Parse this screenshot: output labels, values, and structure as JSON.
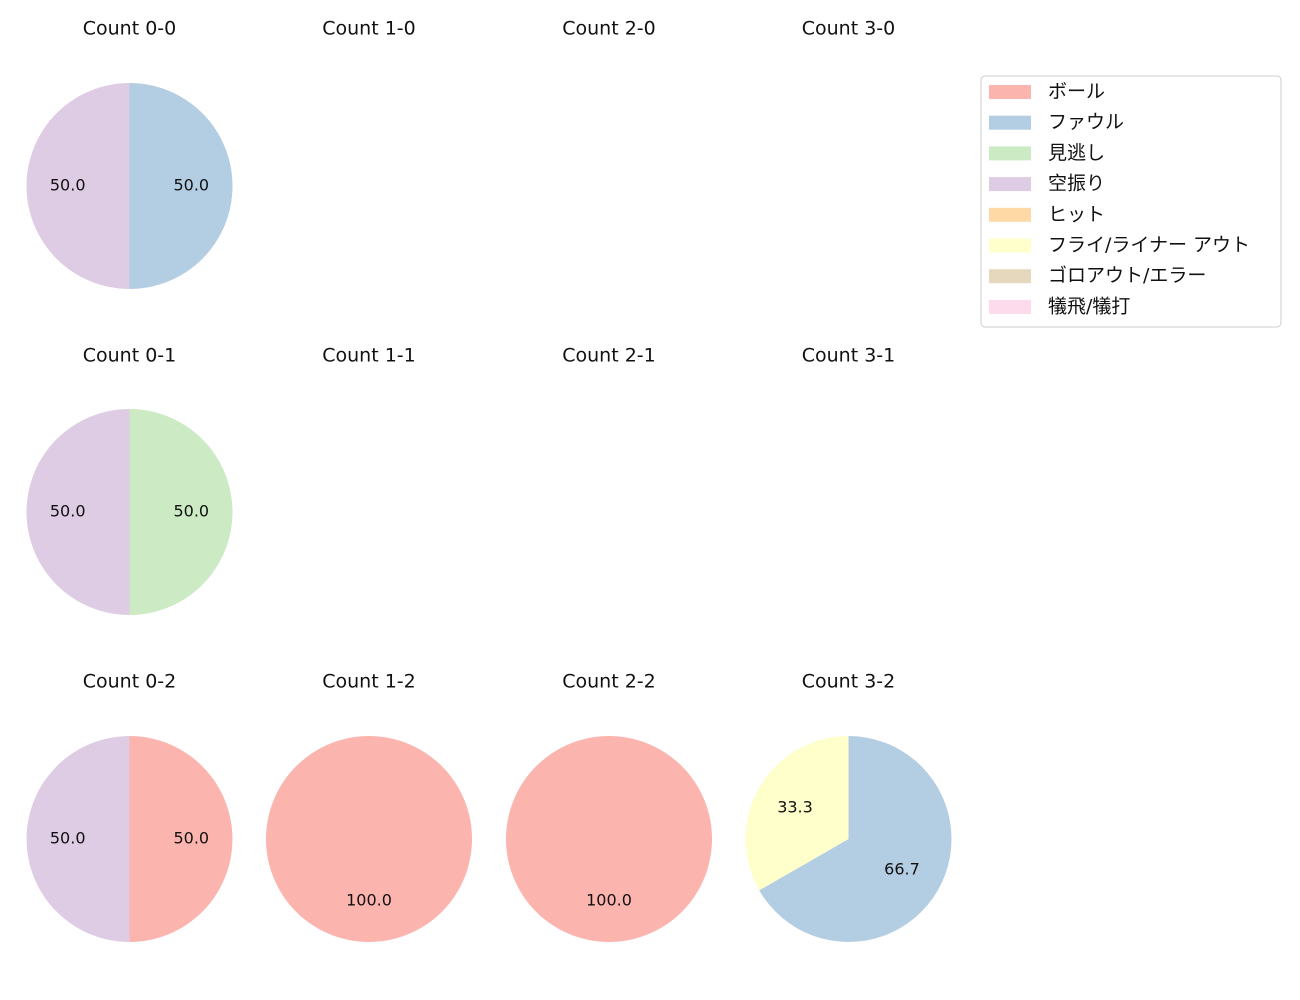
{
  "colors": {
    "ball": "#fbb4ae",
    "foul": "#b3cde3",
    "looking": "#ccebc5",
    "swinging": "#decbe4",
    "hit": "#fed9a6",
    "fly_liner_out": "#ffffcc",
    "grounder_error": "#e5d8bd",
    "sacrifice": "#fddaec"
  },
  "legend": [
    {
      "key": "ball",
      "label": "ボール"
    },
    {
      "key": "foul",
      "label": "ファウル"
    },
    {
      "key": "looking",
      "label": "見逃し"
    },
    {
      "key": "swinging",
      "label": "空振り"
    },
    {
      "key": "hit",
      "label": "ヒット"
    },
    {
      "key": "fly_liner_out",
      "label": "フライ/ライナー アウト"
    },
    {
      "key": "grounder_error",
      "label": "ゴロアウト/エラー"
    },
    {
      "key": "sacrifice",
      "label": "犠飛/犠打"
    }
  ],
  "chart_data": [
    {
      "type": "pie",
      "title": "Count 0-0",
      "slices": [
        {
          "key": "foul",
          "value": 50.0,
          "label": "50.0"
        },
        {
          "key": "swinging",
          "value": 50.0,
          "label": "50.0"
        }
      ]
    },
    {
      "type": "pie",
      "title": "Count 1-0",
      "slices": []
    },
    {
      "type": "pie",
      "title": "Count 2-0",
      "slices": []
    },
    {
      "type": "pie",
      "title": "Count 3-0",
      "slices": []
    },
    {
      "type": "pie",
      "title": "Count 0-1",
      "slices": [
        {
          "key": "looking",
          "value": 50.0,
          "label": "50.0"
        },
        {
          "key": "swinging",
          "value": 50.0,
          "label": "50.0"
        }
      ]
    },
    {
      "type": "pie",
      "title": "Count 1-1",
      "slices": []
    },
    {
      "type": "pie",
      "title": "Count 2-1",
      "slices": []
    },
    {
      "type": "pie",
      "title": "Count 3-1",
      "slices": []
    },
    {
      "type": "pie",
      "title": "Count 0-2",
      "slices": [
        {
          "key": "ball",
          "value": 50.0,
          "label": "50.0"
        },
        {
          "key": "swinging",
          "value": 50.0,
          "label": "50.0"
        }
      ]
    },
    {
      "type": "pie",
      "title": "Count 1-2",
      "slices": [
        {
          "key": "ball",
          "value": 100.0,
          "label": "100.0"
        }
      ]
    },
    {
      "type": "pie",
      "title": "Count 2-2",
      "slices": [
        {
          "key": "ball",
          "value": 100.0,
          "label": "100.0"
        }
      ]
    },
    {
      "type": "pie",
      "title": "Count 3-2",
      "slices": [
        {
          "key": "foul",
          "value": 66.7,
          "label": "66.7"
        },
        {
          "key": "fly_liner_out",
          "value": 33.3,
          "label": "33.3"
        }
      ]
    }
  ]
}
